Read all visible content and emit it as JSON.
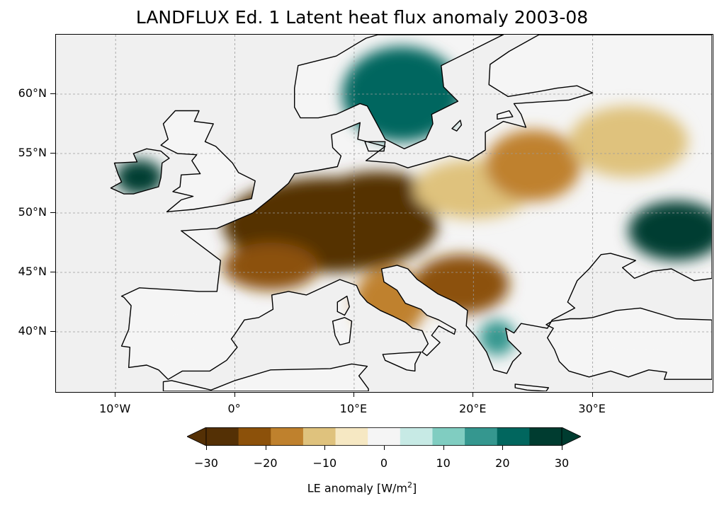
{
  "title": "LANDFLUX Ed. 1 Latent heat flux anomaly 2003-08",
  "map": {
    "projection": "PlateCarree",
    "lon_range": [
      -15,
      40
    ],
    "lat_range": [
      35,
      65
    ],
    "background_color": "#f0f0f0",
    "coastline_color": "#000000",
    "gridlines": true
  },
  "axes": {
    "lat_ticks": [
      {
        "value": 60,
        "label": "60°N"
      },
      {
        "value": 55,
        "label": "55°N"
      },
      {
        "value": 50,
        "label": "50°N"
      },
      {
        "value": 45,
        "label": "45°N"
      },
      {
        "value": 40,
        "label": "40°N"
      }
    ],
    "lon_ticks": [
      {
        "value": -10,
        "label": "10°W"
      },
      {
        "value": 0,
        "label": "0°"
      },
      {
        "value": 10,
        "label": "10°E"
      },
      {
        "value": 20,
        "label": "20°E"
      },
      {
        "value": 30,
        "label": "30°E"
      }
    ]
  },
  "colorbar": {
    "label_main": "LE anomaly [W/m",
    "label_sup": "2",
    "label_end": "]",
    "extend": "both",
    "levels": [
      -30,
      -25,
      -20,
      -15,
      -10,
      -5,
      0,
      5,
      10,
      15,
      20,
      25,
      30
    ],
    "colors": [
      "#543005",
      "#8c510a",
      "#bf812d",
      "#dfc27d",
      "#f6e8c3",
      "#f5f5f5",
      "#c7eae5",
      "#80cdc1",
      "#35978f",
      "#01665e",
      "#003c30"
    ],
    "extend_colors": {
      "low": "#543005",
      "high": "#003c30"
    },
    "tick_labels": [
      {
        "value": -30,
        "label": "−30"
      },
      {
        "value": -20,
        "label": "−20"
      },
      {
        "value": -10,
        "label": "−10"
      },
      {
        "value": 0,
        "label": "0"
      },
      {
        "value": 10,
        "label": "10"
      },
      {
        "value": 20,
        "label": "20"
      },
      {
        "value": 30,
        "label": "30"
      }
    ]
  },
  "anomaly_regions": [
    {
      "name": "france-germany-dry",
      "lon": 8,
      "lat": 49,
      "rlon": 9,
      "rlat": 4,
      "value": -30
    },
    {
      "name": "central-europe-dry",
      "lon": 12,
      "lat": 51,
      "rlon": 5,
      "rlat": 2.5,
      "value": -30
    },
    {
      "name": "southern-france-dry",
      "lon": 3,
      "lat": 45.5,
      "rlon": 4,
      "rlat": 2,
      "value": -25
    },
    {
      "name": "italy-dry",
      "lon": 13,
      "lat": 42.5,
      "rlon": 3,
      "rlat": 3,
      "value": -20
    },
    {
      "name": "balkans-dry",
      "lon": 19,
      "lat": 44,
      "rlon": 4,
      "rlat": 2.5,
      "value": -25
    },
    {
      "name": "poland-dry",
      "lon": 20,
      "lat": 52,
      "rlon": 5,
      "rlat": 2.5,
      "value": -15
    },
    {
      "name": "belarus-dry",
      "lon": 25,
      "lat": 54,
      "rlon": 4,
      "rlat": 3,
      "value": -20
    },
    {
      "name": "russia-dry",
      "lon": 33,
      "lat": 56,
      "rlon": 5,
      "rlat": 3,
      "value": -15
    },
    {
      "name": "ireland-wet",
      "lon": -8,
      "lat": 53,
      "rlon": 2,
      "rlat": 1.5,
      "value": 20
    },
    {
      "name": "scandinavia-wet",
      "lon": 14,
      "lat": 60,
      "rlon": 5,
      "rlat": 4,
      "value": 15
    },
    {
      "name": "ukraine-wet",
      "lon": 37,
      "lat": 48.5,
      "rlon": 4,
      "rlat": 2.5,
      "value": 30
    },
    {
      "name": "iberia-neutral",
      "lon": -4,
      "lat": 40,
      "rlon": 5,
      "rlat": 3,
      "value": -5
    },
    {
      "name": "turkey-neutral",
      "lon": 34,
      "lat": 39,
      "rlon": 6,
      "rlat": 2,
      "value": -5
    },
    {
      "name": "greece-wet",
      "lon": 22,
      "lat": 39.5,
      "rlon": 1.5,
      "rlat": 1.5,
      "value": 10
    }
  ]
}
